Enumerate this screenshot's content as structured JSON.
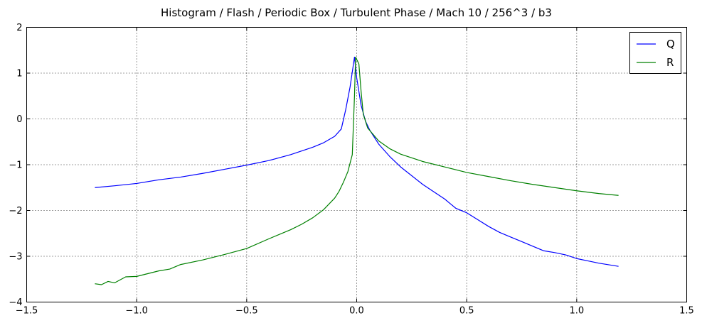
{
  "chart_data": {
    "type": "line",
    "title": "Histogram / Flash / Periodic Box / Turbulent Phase / Mach 10 / 256^3 / b3",
    "xlabel": "",
    "ylabel": "",
    "xlim": [
      -1.5,
      1.5
    ],
    "ylim": [
      -4,
      2
    ],
    "x_ticks": [
      -1.5,
      -1.0,
      -0.5,
      0.0,
      0.5,
      1.0,
      1.5
    ],
    "x_tick_labels": [
      "−1.5",
      "−1.0",
      "−0.5",
      "0.0",
      "0.5",
      "1.0",
      "1.5"
    ],
    "y_ticks": [
      -4,
      -3,
      -2,
      -1,
      0,
      1,
      2
    ],
    "y_tick_labels": [
      "−4",
      "−3",
      "−2",
      "−1",
      "0",
      "1",
      "2"
    ],
    "grid": true,
    "grid_style": "dotted",
    "legend_position": "top-right",
    "series": [
      {
        "name": "Q",
        "color": "#0000ff",
        "points": [
          [
            -1.19,
            -1.5
          ],
          [
            -1.1,
            -1.46
          ],
          [
            -1.0,
            -1.41
          ],
          [
            -0.9,
            -1.33
          ],
          [
            -0.8,
            -1.27
          ],
          [
            -0.7,
            -1.19
          ],
          [
            -0.6,
            -1.1
          ],
          [
            -0.5,
            -1.01
          ],
          [
            -0.4,
            -0.91
          ],
          [
            -0.3,
            -0.78
          ],
          [
            -0.2,
            -0.62
          ],
          [
            -0.15,
            -0.52
          ],
          [
            -0.1,
            -0.38
          ],
          [
            -0.07,
            -0.22
          ],
          [
            -0.05,
            0.2
          ],
          [
            -0.03,
            0.7
          ],
          [
            -0.01,
            1.35
          ],
          [
            0.0,
            0.9
          ],
          [
            0.02,
            0.3
          ],
          [
            0.04,
            -0.05
          ],
          [
            0.06,
            -0.25
          ],
          [
            0.1,
            -0.55
          ],
          [
            0.15,
            -0.82
          ],
          [
            0.2,
            -1.05
          ],
          [
            0.3,
            -1.43
          ],
          [
            0.4,
            -1.75
          ],
          [
            0.45,
            -1.95
          ],
          [
            0.5,
            -2.05
          ],
          [
            0.55,
            -2.2
          ],
          [
            0.6,
            -2.35
          ],
          [
            0.65,
            -2.48
          ],
          [
            0.7,
            -2.58
          ],
          [
            0.75,
            -2.68
          ],
          [
            0.8,
            -2.78
          ],
          [
            0.85,
            -2.88
          ],
          [
            0.9,
            -2.92
          ],
          [
            0.95,
            -2.97
          ],
          [
            1.0,
            -3.05
          ],
          [
            1.05,
            -3.1
          ],
          [
            1.1,
            -3.15
          ],
          [
            1.19,
            -3.22
          ]
        ]
      },
      {
        "name": "R",
        "color": "#008000",
        "points": [
          [
            -1.19,
            -3.6
          ],
          [
            -1.16,
            -3.62
          ],
          [
            -1.13,
            -3.55
          ],
          [
            -1.1,
            -3.58
          ],
          [
            -1.05,
            -3.45
          ],
          [
            -1.0,
            -3.44
          ],
          [
            -0.95,
            -3.38
          ],
          [
            -0.9,
            -3.32
          ],
          [
            -0.85,
            -3.28
          ],
          [
            -0.8,
            -3.18
          ],
          [
            -0.7,
            -3.08
          ],
          [
            -0.6,
            -2.96
          ],
          [
            -0.5,
            -2.83
          ],
          [
            -0.4,
            -2.62
          ],
          [
            -0.3,
            -2.42
          ],
          [
            -0.25,
            -2.3
          ],
          [
            -0.2,
            -2.16
          ],
          [
            -0.15,
            -1.98
          ],
          [
            -0.1,
            -1.73
          ],
          [
            -0.08,
            -1.58
          ],
          [
            -0.06,
            -1.38
          ],
          [
            -0.04,
            -1.15
          ],
          [
            -0.02,
            -0.78
          ],
          [
            -0.01,
            0.5
          ],
          [
            -0.005,
            1.35
          ],
          [
            0.01,
            1.2
          ],
          [
            0.02,
            0.6
          ],
          [
            0.03,
            0.1
          ],
          [
            0.05,
            -0.2
          ],
          [
            0.1,
            -0.48
          ],
          [
            0.15,
            -0.65
          ],
          [
            0.2,
            -0.77
          ],
          [
            0.3,
            -0.93
          ],
          [
            0.4,
            -1.05
          ],
          [
            0.5,
            -1.17
          ],
          [
            0.6,
            -1.26
          ],
          [
            0.7,
            -1.35
          ],
          [
            0.8,
            -1.43
          ],
          [
            0.9,
            -1.5
          ],
          [
            1.0,
            -1.57
          ],
          [
            1.1,
            -1.63
          ],
          [
            1.19,
            -1.67
          ]
        ]
      }
    ]
  }
}
